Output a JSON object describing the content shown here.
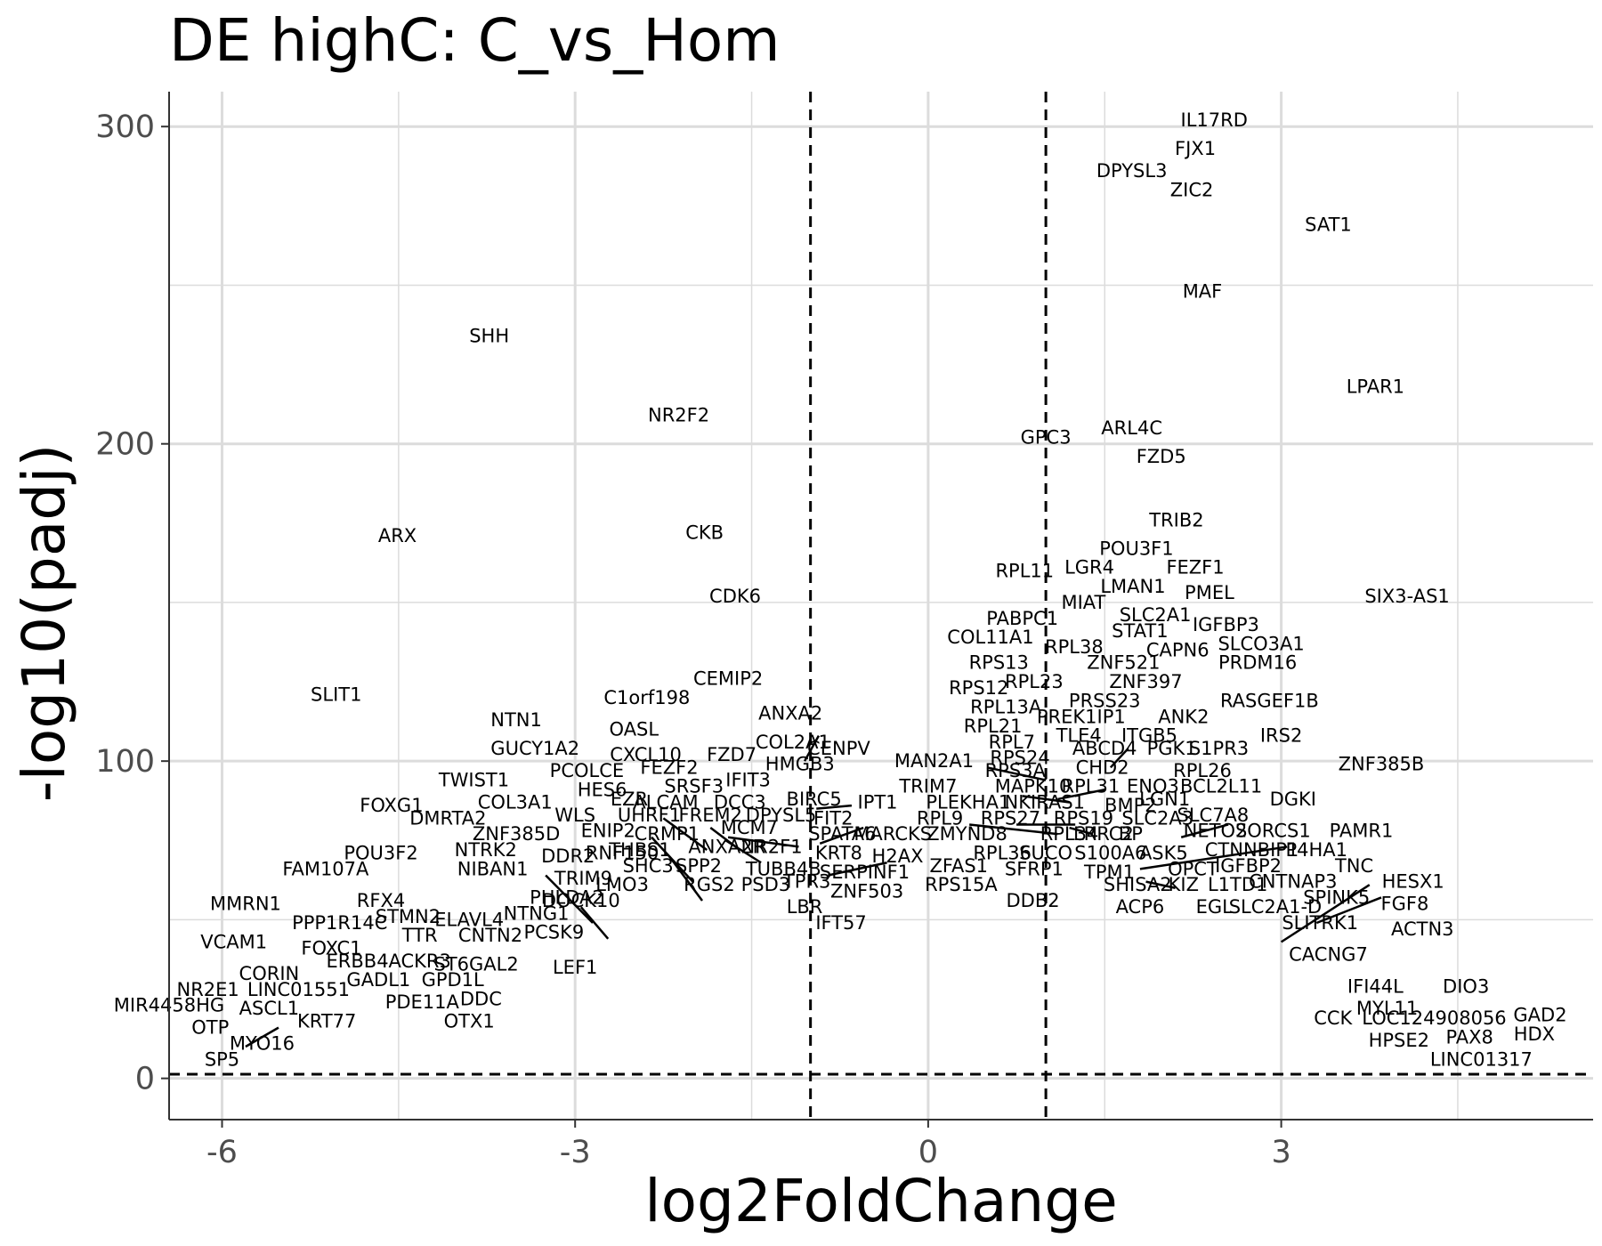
{
  "chart_data": {
    "type": "scatter",
    "title": "DE highC: C_vs_Hom",
    "xlabel": "log2FoldChange",
    "ylabel": "-log10(padj)",
    "xlim": [
      -6.45,
      5.65
    ],
    "ylim": [
      -13,
      311
    ],
    "x_ticks": [
      -6,
      -3,
      0,
      3
    ],
    "x_tick_labels": [
      "-6",
      "-3",
      "0",
      "3"
    ],
    "y_ticks": [
      0,
      100,
      200,
      300
    ],
    "y_tick_labels": [
      "0",
      "100",
      "200",
      "300"
    ],
    "grid": true,
    "legend": "none",
    "thresholds": {
      "log2fc": [
        -1,
        1
      ],
      "padj_line": 1.3
    },
    "colors": {
      "grid": "#dcdcdc",
      "text": "#000000",
      "tick_text": "#4d4d4d",
      "axis": "#333333"
    },
    "genes": [
      {
        "name": "IL17RD",
        "x": 2.43,
        "y": 302
      },
      {
        "name": "FJX1",
        "x": 2.27,
        "y": 293
      },
      {
        "name": "DPYSL3",
        "x": 1.73,
        "y": 286
      },
      {
        "name": "ZIC2",
        "x": 2.24,
        "y": 280
      },
      {
        "name": "SAT1",
        "x": 3.4,
        "y": 269
      },
      {
        "name": "MAF",
        "x": 2.33,
        "y": 248
      },
      {
        "name": "SHH",
        "x": -3.73,
        "y": 234
      },
      {
        "name": "LPAR1",
        "x": 3.8,
        "y": 218
      },
      {
        "name": "NR2F2",
        "x": -2.12,
        "y": 209
      },
      {
        "name": "ARL4C",
        "x": 1.73,
        "y": 205
      },
      {
        "name": "GPC3",
        "x": 1.0,
        "y": 202
      },
      {
        "name": "FZD5",
        "x": 1.98,
        "y": 196
      },
      {
        "name": "TRIB2",
        "x": 2.11,
        "y": 176
      },
      {
        "name": "ARX",
        "x": -4.51,
        "y": 171
      },
      {
        "name": "CKB",
        "x": -1.9,
        "y": 172
      },
      {
        "name": "POU3F1",
        "x": 1.77,
        "y": 167
      },
      {
        "name": "RPL11",
        "x": 0.82,
        "y": 160
      },
      {
        "name": "LGR4",
        "x": 1.37,
        "y": 161
      },
      {
        "name": "FEZF1",
        "x": 2.27,
        "y": 161
      },
      {
        "name": "LMAN1",
        "x": 1.74,
        "y": 155
      },
      {
        "name": "PMEL",
        "x": 2.39,
        "y": 153
      },
      {
        "name": "CDK6",
        "x": -1.64,
        "y": 152
      },
      {
        "name": "SIX3-AS1",
        "x": 4.07,
        "y": 152
      },
      {
        "name": "MIAT",
        "x": 1.32,
        "y": 150
      },
      {
        "name": "PABPC1",
        "x": 0.8,
        "y": 145
      },
      {
        "name": "SLC2A1",
        "x": 1.93,
        "y": 146
      },
      {
        "name": "IGFBP3",
        "x": 2.53,
        "y": 143
      },
      {
        "name": "STAT1",
        "x": 1.8,
        "y": 141
      },
      {
        "name": "COL11A1",
        "x": 0.53,
        "y": 139
      },
      {
        "name": "RPL38",
        "x": 1.24,
        "y": 136
      },
      {
        "name": "SLCO3A1",
        "x": 2.83,
        "y": 137
      },
      {
        "name": "CAPN6",
        "x": 2.12,
        "y": 135
      },
      {
        "name": "RPS13",
        "x": 0.6,
        "y": 131
      },
      {
        "name": "ZNF521",
        "x": 1.66,
        "y": 131
      },
      {
        "name": "PRDM16",
        "x": 2.8,
        "y": 131
      },
      {
        "name": "CEMIP2",
        "x": -1.7,
        "y": 126
      },
      {
        "name": "RPL23",
        "x": 0.9,
        "y": 125
      },
      {
        "name": "ZNF397",
        "x": 1.85,
        "y": 125
      },
      {
        "name": "RPS12",
        "x": 0.43,
        "y": 123
      },
      {
        "name": "PRSS23",
        "x": 1.5,
        "y": 119
      },
      {
        "name": "SLIT1",
        "x": -5.03,
        "y": 121
      },
      {
        "name": "C1orf198",
        "x": -2.39,
        "y": 120
      },
      {
        "name": "RPL13A",
        "x": 0.66,
        "y": 117
      },
      {
        "name": "RASGEF1B",
        "x": 2.9,
        "y": 119
      },
      {
        "name": "PREK1IP1",
        "x": 1.3,
        "y": 114
      },
      {
        "name": "NTN1",
        "x": -3.5,
        "y": 113
      },
      {
        "name": "ANXA2",
        "x": -1.17,
        "y": 115
      },
      {
        "name": "ANK2",
        "x": 2.17,
        "y": 114
      },
      {
        "name": "RPL21",
        "x": 0.55,
        "y": 111
      },
      {
        "name": "OASL",
        "x": -2.5,
        "y": 110
      },
      {
        "name": "TLE4",
        "x": 1.28,
        "y": 108
      },
      {
        "name": "ITGB5",
        "x": 1.88,
        "y": 108
      },
      {
        "name": "IRS2",
        "x": 3.0,
        "y": 108
      },
      {
        "name": "COL2A1",
        "x": -1.15,
        "y": 106
      },
      {
        "name": "RPL7",
        "x": 0.71,
        "y": 106
      },
      {
        "name": "CENPV",
        "x": -0.76,
        "y": 104
      },
      {
        "name": "GUCY1A2",
        "x": -3.34,
        "y": 104
      },
      {
        "name": "ABCD4",
        "x": 1.5,
        "y": 104
      },
      {
        "name": "PGK1",
        "x": 2.07,
        "y": 104
      },
      {
        "name": "S1PR3",
        "x": 2.47,
        "y": 104
      },
      {
        "name": "CXCL10",
        "x": -2.4,
        "y": 102
      },
      {
        "name": "FZD7",
        "x": -1.67,
        "y": 102
      },
      {
        "name": "RPS24",
        "x": 0.78,
        "y": 101
      },
      {
        "name": "MAN2A1",
        "x": 0.05,
        "y": 100
      },
      {
        "name": "HMGB3",
        "x": -1.09,
        "y": 99
      },
      {
        "name": "ZNF385B",
        "x": 3.85,
        "y": 99
      },
      {
        "name": "RPL26",
        "x": 2.33,
        "y": 97
      },
      {
        "name": "CHD2",
        "x": 1.48,
        "y": 98
      },
      {
        "name": "PCOLCE",
        "x": -2.9,
        "y": 97
      },
      {
        "name": "FEZF2",
        "x": -2.2,
        "y": 98
      },
      {
        "name": "RPS3A",
        "x": 0.74,
        "y": 97
      },
      {
        "name": "TWIST1",
        "x": -3.86,
        "y": 94
      },
      {
        "name": "IFIT3",
        "x": -1.53,
        "y": 94
      },
      {
        "name": "TRIM7",
        "x": 0.0,
        "y": 92
      },
      {
        "name": "ENO3",
        "x": 1.91,
        "y": 92
      },
      {
        "name": "BCL2L11",
        "x": 2.49,
        "y": 92
      },
      {
        "name": "MAPK10",
        "x": 0.89,
        "y": 92
      },
      {
        "name": "RPL31",
        "x": 1.38,
        "y": 92
      },
      {
        "name": "HES6",
        "x": -2.77,
        "y": 91
      },
      {
        "name": "SRSF3",
        "x": -1.99,
        "y": 92
      },
      {
        "name": "EZR",
        "x": -2.54,
        "y": 88
      },
      {
        "name": "ALCAM",
        "x": -2.23,
        "y": 87
      },
      {
        "name": "DCC3",
        "x": -1.6,
        "y": 87
      },
      {
        "name": "BIRC5",
        "x": -0.97,
        "y": 88
      },
      {
        "name": "IPT1",
        "x": -0.43,
        "y": 87
      },
      {
        "name": "PLEKHA1",
        "x": 0.34,
        "y": 87
      },
      {
        "name": "NKIRAS1",
        "x": 0.99,
        "y": 87
      },
      {
        "name": "LGN1",
        "x": 2.01,
        "y": 88
      },
      {
        "name": "DGKI",
        "x": 3.1,
        "y": 88
      },
      {
        "name": "COL3A1",
        "x": -3.51,
        "y": 87
      },
      {
        "name": "FOXG1",
        "x": -4.56,
        "y": 86
      },
      {
        "name": "BMP2",
        "x": 1.72,
        "y": 86
      },
      {
        "name": "SLC7A8",
        "x": 2.42,
        "y": 83
      },
      {
        "name": "UHRF1",
        "x": -2.37,
        "y": 83
      },
      {
        "name": "WLS",
        "x": -3.0,
        "y": 83
      },
      {
        "name": "FREM2",
        "x": -1.85,
        "y": 83
      },
      {
        "name": "DPYSL5",
        "x": -1.25,
        "y": 83
      },
      {
        "name": "IFIT2",
        "x": -0.83,
        "y": 82
      },
      {
        "name": "DMRTA2",
        "x": -4.08,
        "y": 82
      },
      {
        "name": "RPL9",
        "x": 0.1,
        "y": 82
      },
      {
        "name": "RPS27",
        "x": 0.7,
        "y": 82
      },
      {
        "name": "RPS19",
        "x": 1.32,
        "y": 82
      },
      {
        "name": "SLC2A3",
        "x": 1.95,
        "y": 82
      },
      {
        "name": "ENIP2",
        "x": -2.72,
        "y": 78
      },
      {
        "name": "CRMP1",
        "x": -2.22,
        "y": 77
      },
      {
        "name": "MCM7",
        "x": -1.52,
        "y": 79
      },
      {
        "name": "SPATA6",
        "x": -0.73,
        "y": 77
      },
      {
        "name": "MARCKS",
        "x": -0.3,
        "y": 77
      },
      {
        "name": "ZMYND8",
        "x": 0.33,
        "y": 77
      },
      {
        "name": "RPL34",
        "x": 1.2,
        "y": 77
      },
      {
        "name": "LRRC2",
        "x": 1.49,
        "y": 77
      },
      {
        "name": "BP",
        "x": 1.72,
        "y": 77
      },
      {
        "name": "NETO2",
        "x": 2.44,
        "y": 78
      },
      {
        "name": "SORCS1",
        "x": 2.93,
        "y": 78
      },
      {
        "name": "PAMR1",
        "x": 3.68,
        "y": 78
      },
      {
        "name": "ZNF385D",
        "x": -3.5,
        "y": 77
      },
      {
        "name": "THBS1",
        "x": -2.45,
        "y": 72
      },
      {
        "name": "ANXA2R",
        "x": -1.71,
        "y": 73
      },
      {
        "name": "NR2F1",
        "x": -1.33,
        "y": 73
      },
      {
        "name": "KRT8",
        "x": -0.76,
        "y": 71
      },
      {
        "name": "H2AX",
        "x": -0.26,
        "y": 70
      },
      {
        "name": "RPL36",
        "x": 0.63,
        "y": 71
      },
      {
        "name": "SUCO",
        "x": 1.0,
        "y": 71
      },
      {
        "name": "S100A6",
        "x": 1.55,
        "y": 71
      },
      {
        "name": "ASK5",
        "x": 2.0,
        "y": 71
      },
      {
        "name": "CTNNBIP1",
        "x": 2.75,
        "y": 72
      },
      {
        "name": "P4HA1",
        "x": 3.3,
        "y": 72
      },
      {
        "name": "NTRK2",
        "x": -3.76,
        "y": 72
      },
      {
        "name": "POU3F2",
        "x": -4.65,
        "y": 71
      },
      {
        "name": "RNF150",
        "x": -2.6,
        "y": 71
      },
      {
        "name": "DDR2",
        "x": -3.06,
        "y": 70
      },
      {
        "name": "NIBAN1",
        "x": -3.7,
        "y": 66
      },
      {
        "name": "SHC3",
        "x": -2.38,
        "y": 67
      },
      {
        "name": "SPP2",
        "x": -1.95,
        "y": 67
      },
      {
        "name": "TUBB4B",
        "x": -1.23,
        "y": 66
      },
      {
        "name": "SERPINF1",
        "x": -0.54,
        "y": 65
      },
      {
        "name": "ZFAS1",
        "x": 0.26,
        "y": 67
      },
      {
        "name": "SFRP1",
        "x": 0.9,
        "y": 66
      },
      {
        "name": "TPM1",
        "x": 1.54,
        "y": 65
      },
      {
        "name": "OPCT",
        "x": 2.25,
        "y": 66
      },
      {
        "name": "IGFBP2",
        "x": 2.72,
        "y": 67
      },
      {
        "name": "TNC",
        "x": 3.62,
        "y": 67
      },
      {
        "name": "FAM107A",
        "x": -5.12,
        "y": 66
      },
      {
        "name": "TRIM9",
        "x": -2.93,
        "y": 63
      },
      {
        "name": "LMO3",
        "x": -2.6,
        "y": 61
      },
      {
        "name": "RGS2",
        "x": -1.86,
        "y": 61
      },
      {
        "name": "PSD3",
        "x": -1.38,
        "y": 61
      },
      {
        "name": "TPR3",
        "x": -1.03,
        "y": 62
      },
      {
        "name": "RPS15A",
        "x": 0.28,
        "y": 61
      },
      {
        "name": "SHISA2",
        "x": 1.78,
        "y": 61
      },
      {
        "name": "KIZ",
        "x": 2.17,
        "y": 61
      },
      {
        "name": "L1TD1",
        "x": 2.63,
        "y": 61
      },
      {
        "name": "CNTNAP3",
        "x": 3.1,
        "y": 62
      },
      {
        "name": "HESX1",
        "x": 4.12,
        "y": 62
      },
      {
        "name": "ZNF503",
        "x": -0.52,
        "y": 59
      },
      {
        "name": "PHLDA2",
        "x": -3.07,
        "y": 57
      },
      {
        "name": "DOCK10",
        "x": -2.95,
        "y": 56
      },
      {
        "name": "DDB2",
        "x": 0.89,
        "y": 56
      },
      {
        "name": "SPINK5",
        "x": 3.47,
        "y": 57
      },
      {
        "name": "FGF8",
        "x": 4.05,
        "y": 55
      },
      {
        "name": "MMRN1",
        "x": -5.8,
        "y": 55
      },
      {
        "name": "RFX4",
        "x": -4.65,
        "y": 56
      },
      {
        "name": "LBR",
        "x": -1.05,
        "y": 54
      },
      {
        "name": "ACP6",
        "x": 1.8,
        "y": 54
      },
      {
        "name": "EGL",
        "x": 2.43,
        "y": 54
      },
      {
        "name": "SLC2A1-D",
        "x": 2.95,
        "y": 54
      },
      {
        "name": "NTNG1",
        "x": -3.33,
        "y": 52
      },
      {
        "name": "STMN2",
        "x": -4.42,
        "y": 51
      },
      {
        "name": "ELAVL4",
        "x": -3.9,
        "y": 50
      },
      {
        "name": "PPP1R14C",
        "x": -5.0,
        "y": 49
      },
      {
        "name": "IFT57",
        "x": -0.74,
        "y": 49
      },
      {
        "name": "SLITRK1",
        "x": 3.33,
        "y": 49
      },
      {
        "name": "ACTN3",
        "x": 4.2,
        "y": 47
      },
      {
        "name": "PCSK9",
        "x": -3.18,
        "y": 46
      },
      {
        "name": "TTR",
        "x": -4.32,
        "y": 45
      },
      {
        "name": "CNTN2",
        "x": -3.72,
        "y": 45
      },
      {
        "name": "VCAM1",
        "x": -5.9,
        "y": 43
      },
      {
        "name": "FOXC1",
        "x": -5.07,
        "y": 41
      },
      {
        "name": "CACNG7",
        "x": 3.4,
        "y": 39
      },
      {
        "name": "ERBB4",
        "x": -4.85,
        "y": 37
      },
      {
        "name": "ACKR3",
        "x": -4.32,
        "y": 37
      },
      {
        "name": "ST6GAL2",
        "x": -3.84,
        "y": 36
      },
      {
        "name": "LEF1",
        "x": -3.0,
        "y": 35
      },
      {
        "name": "CORIN",
        "x": -5.6,
        "y": 33
      },
      {
        "name": "GADL1",
        "x": -4.67,
        "y": 31
      },
      {
        "name": "GPD1L",
        "x": -4.04,
        "y": 31
      },
      {
        "name": "NR2E1",
        "x": -6.12,
        "y": 28
      },
      {
        "name": "LINC01551",
        "x": -5.35,
        "y": 28
      },
      {
        "name": "IFI44L",
        "x": 3.8,
        "y": 29
      },
      {
        "name": "DIO3",
        "x": 4.57,
        "y": 29
      },
      {
        "name": "DDC",
        "x": -3.8,
        "y": 25
      },
      {
        "name": "PDE11A",
        "x": -4.3,
        "y": 24
      },
      {
        "name": "MIR4458HG",
        "x": -6.45,
        "y": 23
      },
      {
        "name": "ASCL1",
        "x": -5.6,
        "y": 22
      },
      {
        "name": "MYL11",
        "x": 3.9,
        "y": 22
      },
      {
        "name": "GAD2",
        "x": 5.2,
        "y": 20
      },
      {
        "name": "CCK",
        "x": 3.44,
        "y": 19
      },
      {
        "name": "LOC124908056",
        "x": 4.3,
        "y": 19
      },
      {
        "name": "HDX",
        "x": 5.15,
        "y": 14
      },
      {
        "name": "KRT77",
        "x": -5.11,
        "y": 18
      },
      {
        "name": "OTX1",
        "x": -3.9,
        "y": 18
      },
      {
        "name": "OTP",
        "x": -6.1,
        "y": 16
      },
      {
        "name": "PAX8",
        "x": 4.6,
        "y": 13
      },
      {
        "name": "HPSE2",
        "x": 4.0,
        "y": 12
      },
      {
        "name": "MYO16",
        "x": -5.66,
        "y": 11
      },
      {
        "name": "LINC01317",
        "x": 4.7,
        "y": 6
      },
      {
        "name": "SP5",
        "x": -6.0,
        "y": 6
      }
    ],
    "connectors": [
      [
        [
          -1.05,
          100
        ],
        [
          -0.93,
          108
        ]
      ],
      [
        [
          -0.92,
          74
        ],
        [
          -0.55,
          79
        ]
      ],
      [
        [
          -1.7,
          76
        ],
        [
          -1.1,
          73
        ]
      ],
      [
        [
          -0.85,
          64
        ],
        [
          -0.35,
          68
        ]
      ],
      [
        [
          -0.95,
          85
        ],
        [
          -0.65,
          86
        ]
      ],
      [
        [
          0.5,
          98
        ],
        [
          1.0,
          94
        ]
      ],
      [
        [
          0.35,
          80
        ],
        [
          1.1,
          77
        ]
      ],
      [
        [
          0.8,
          89
        ],
        [
          1.2,
          87
        ]
      ],
      [
        [
          0.75,
          80
        ],
        [
          1.25,
          80
        ]
      ],
      [
        [
          1.1,
          88
        ],
        [
          1.5,
          91
        ]
      ],
      [
        [
          1.55,
          98
        ],
        [
          1.7,
          104
        ]
      ],
      [
        [
          1.2,
          79
        ],
        [
          1.4,
          77
        ]
      ],
      [
        [
          1.8,
          66
        ],
        [
          3.05,
          73
        ]
      ],
      [
        [
          1.85,
          62
        ],
        [
          2.1,
          60
        ]
      ],
      [
        [
          2.15,
          76
        ],
        [
          2.55,
          80
        ]
      ],
      [
        [
          3.0,
          43
        ],
        [
          3.75,
          61
        ]
      ],
      [
        [
          3.3,
          49
        ],
        [
          3.85,
          57
        ]
      ],
      [
        [
          -3.25,
          64
        ],
        [
          -2.85,
          49
        ]
      ],
      [
        [
          -2.95,
          54
        ],
        [
          -2.72,
          44
        ]
      ],
      [
        [
          -2.25,
          82
        ],
        [
          -1.88,
          72
        ]
      ],
      [
        [
          -2.35,
          76
        ],
        [
          -2.0,
          62
        ]
      ],
      [
        [
          -2.2,
          70
        ],
        [
          -1.92,
          56
        ]
      ],
      [
        [
          -1.85,
          79
        ],
        [
          -1.6,
          72
        ]
      ],
      [
        [
          -1.72,
          75
        ],
        [
          -1.42,
          68
        ]
      ],
      [
        [
          -5.8,
          10
        ],
        [
          -5.52,
          16
        ]
      ]
    ]
  }
}
